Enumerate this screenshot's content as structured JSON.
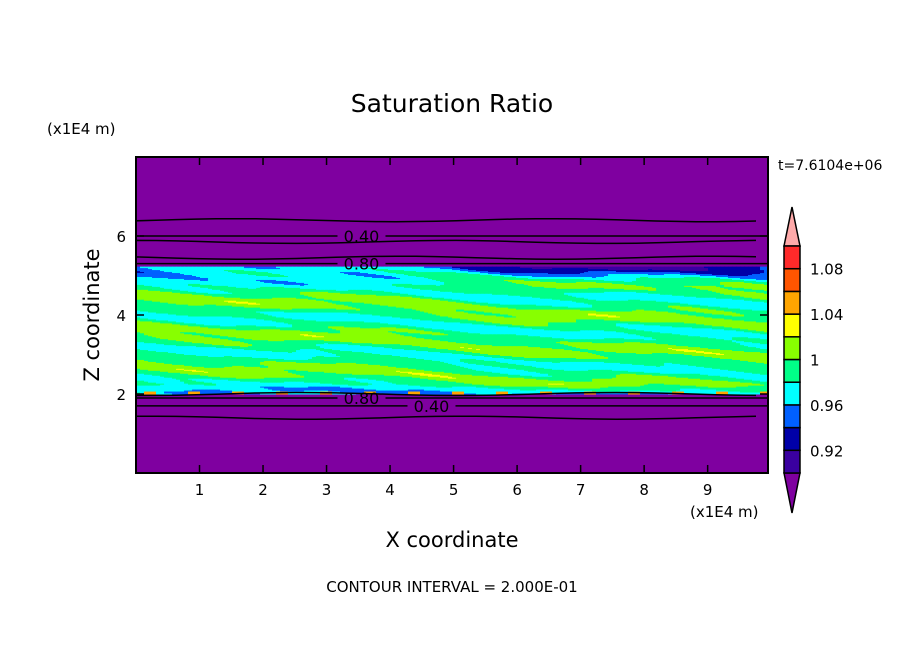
{
  "chart_data": {
    "type": "contour",
    "title": "Saturation Ratio",
    "xlabel": "X coordinate",
    "ylabel": "Z coordinate",
    "x_unit_label": "(x1E4 m)",
    "y_unit_label": "(x1E4 m)",
    "xlim": [
      0,
      9.95
    ],
    "ylim": [
      0,
      8
    ],
    "x_ticks": [
      "1",
      "2",
      "3",
      "4",
      "5",
      "6",
      "7",
      "8",
      "9"
    ],
    "y_ticks": [
      "2",
      "4",
      "6"
    ],
    "time_label": "t=7.6104e+06",
    "footer": "CONTOUR INTERVAL = 2.000E-01",
    "colorbar": {
      "levels": [
        0.9,
        0.92,
        0.94,
        0.96,
        0.98,
        1.0,
        1.02,
        1.04,
        1.06,
        1.08,
        1.1
      ],
      "colors": [
        "#3a00a0",
        "#0000a8",
        "#0060ff",
        "#00ffff",
        "#00ff88",
        "#88ff00",
        "#ffff00",
        "#ffa500",
        "#ff5500",
        "#ff2a2a"
      ],
      "under_color": "#7f00a0",
      "over_color": "#ffaaaa",
      "tick_labels": [
        {
          "value": 1.08,
          "label": "1.08"
        },
        {
          "value": 1.04,
          "label": "1.04"
        },
        {
          "value": 1.0,
          "label": "1"
        },
        {
          "value": 0.96,
          "label": "0.96"
        },
        {
          "value": 0.92,
          "label": "0.92"
        }
      ]
    },
    "contour_lines": [
      {
        "z": 6.4
      },
      {
        "z": 6.0,
        "label": "0.40"
      },
      {
        "z": 5.85
      },
      {
        "z": 5.45
      },
      {
        "z": 5.3,
        "label": "0.80"
      },
      {
        "z": 2.0
      },
      {
        "z": 1.9,
        "label": "0.80"
      },
      {
        "z": 1.7,
        "label": "0.40"
      },
      {
        "z": 1.4
      }
    ]
  }
}
